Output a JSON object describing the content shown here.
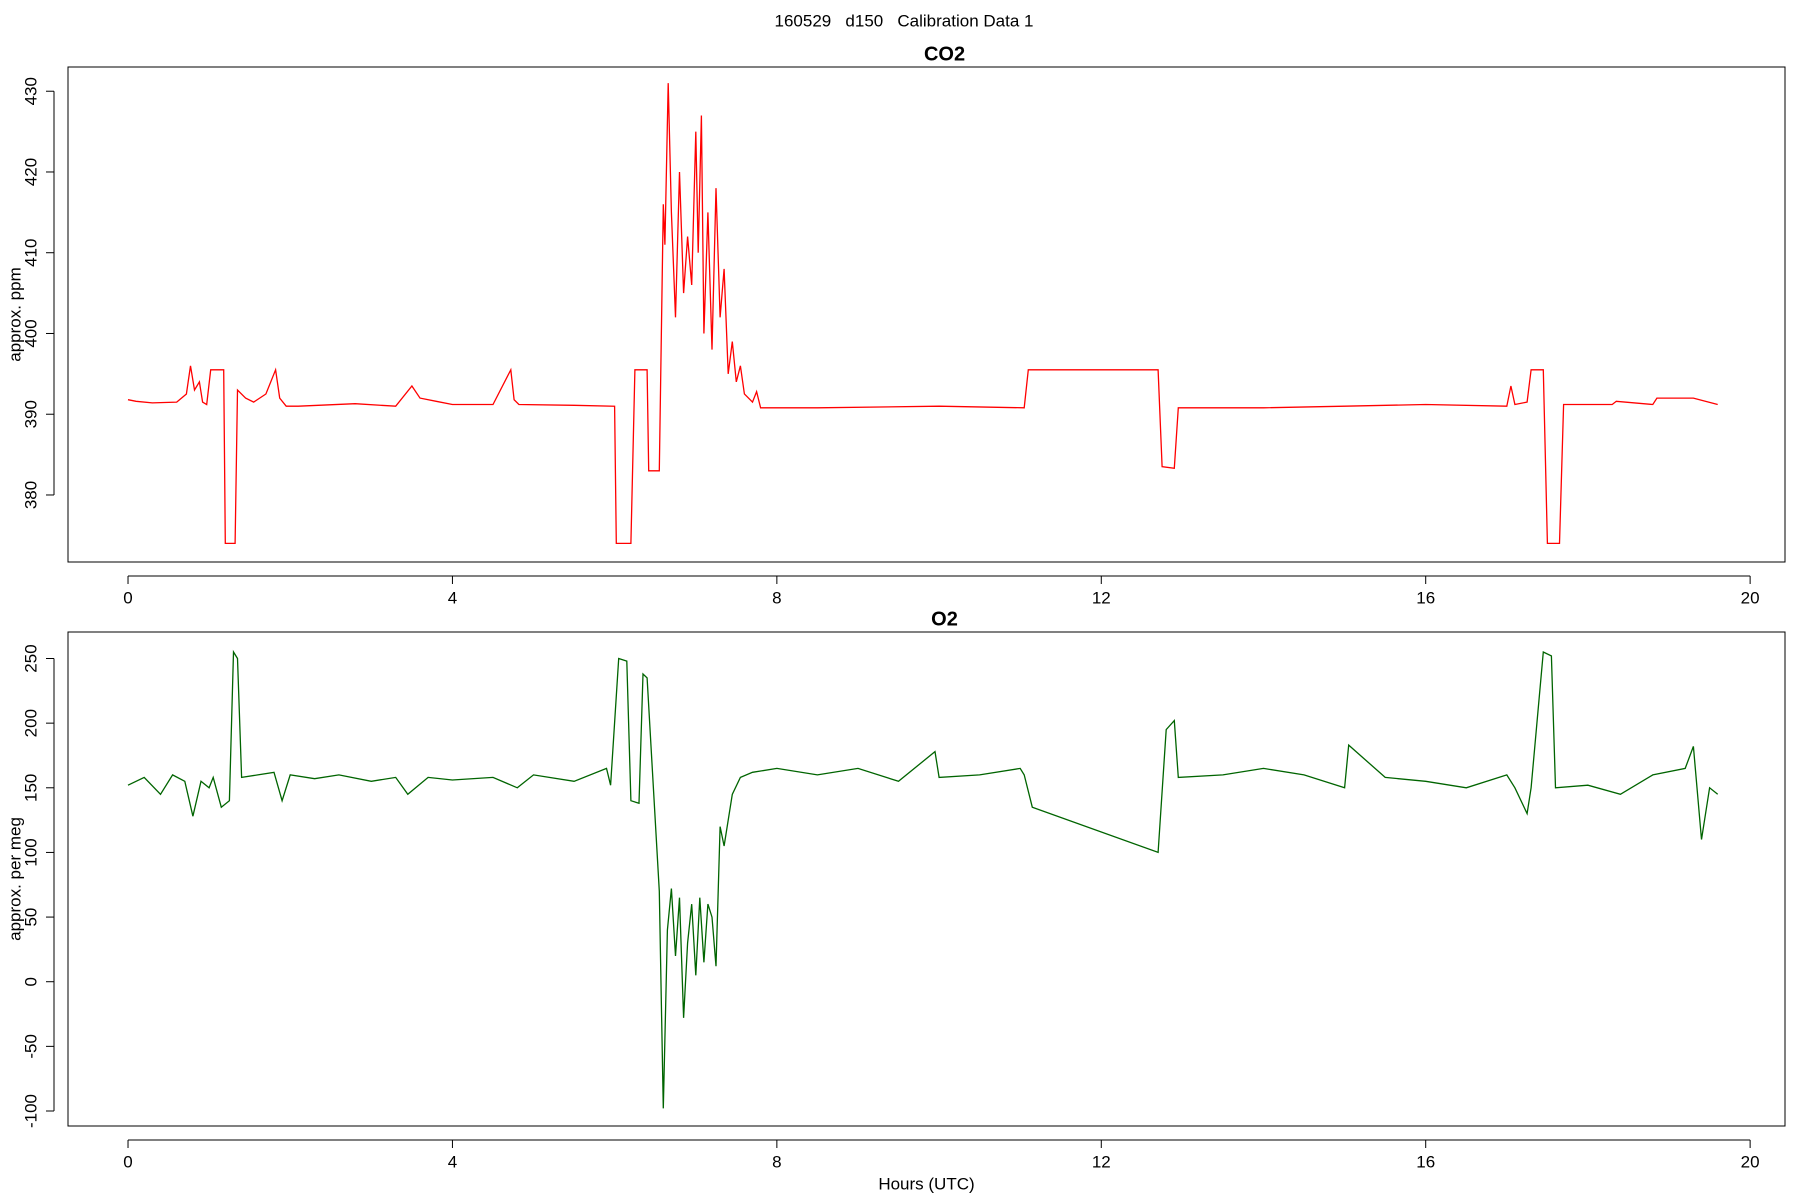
{
  "title": "160529   d150   Calibration Data 1",
  "chart_data": [
    {
      "type": "line",
      "title": "CO2",
      "ylabel": "approx. ppm",
      "xlim": [
        -0.74,
        20.43
      ],
      "xticks": [
        0,
        4,
        8,
        12,
        16,
        20
      ],
      "ylim": [
        371.7,
        433
      ],
      "yticks": [
        380,
        390,
        400,
        410,
        420,
        430
      ],
      "series": [
        {
          "color": "#ff0000",
          "x": [
            0,
            0.1,
            0.3,
            0.6,
            0.72,
            0.77,
            0.82,
            0.88,
            0.92,
            0.97,
            1.02,
            1.18,
            1.2,
            1.32,
            1.35,
            1.45,
            1.55,
            1.7,
            1.82,
            1.87,
            1.95,
            2.1,
            2.8,
            3.3,
            3.5,
            3.6,
            3.8,
            4.0,
            4.5,
            4.72,
            4.76,
            4.82,
            5.5,
            6.0,
            6.02,
            6.2,
            6.25,
            6.4,
            6.42,
            6.55,
            6.6,
            6.62,
            6.66,
            6.7,
            6.75,
            6.8,
            6.85,
            6.9,
            6.95,
            7.0,
            7.03,
            7.07,
            7.1,
            7.15,
            7.2,
            7.25,
            7.3,
            7.35,
            7.4,
            7.45,
            7.5,
            7.55,
            7.6,
            7.7,
            7.75,
            7.8,
            8.5,
            10,
            11.05,
            11.1,
            12.7,
            12.75,
            12.9,
            12.95,
            14,
            15,
            16,
            17,
            17.05,
            17.1,
            17.25,
            17.3,
            17.45,
            17.5,
            17.65,
            17.7,
            18.3,
            18.35,
            18.8,
            18.85,
            19.3,
            19.6
          ],
          "values": [
            391.8,
            391.6,
            391.4,
            391.5,
            392.5,
            396,
            393,
            394,
            391.5,
            391.2,
            395.5,
            395.5,
            374,
            374,
            393,
            392,
            391.5,
            392.5,
            395.5,
            392,
            391,
            391,
            391.3,
            391,
            393.5,
            392,
            391.6,
            391.2,
            391.2,
            395.5,
            391.8,
            391.2,
            391.1,
            391,
            374,
            374,
            395.5,
            395.5,
            383,
            383,
            416,
            411,
            431,
            415,
            402,
            420,
            405,
            412,
            406,
            425,
            410,
            427,
            400,
            415,
            398,
            418,
            402,
            408,
            395,
            399,
            394,
            396,
            392.5,
            391.5,
            392.8,
            390.8,
            390.8,
            391,
            390.8,
            395.5,
            395.5,
            383.5,
            383.3,
            390.8,
            390.8,
            391,
            391.2,
            391,
            393.5,
            391.2,
            391.5,
            395.5,
            395.5,
            374,
            374,
            391.2,
            391.2,
            391.6,
            391.2,
            392,
            392,
            391.2
          ]
        }
      ]
    },
    {
      "type": "line",
      "title": "O2",
      "ylabel": "approx. per meg",
      "xlabel": "Hours (UTC)",
      "xlim": [
        -0.74,
        20.43
      ],
      "xticks": [
        0,
        4,
        8,
        12,
        16,
        20
      ],
      "ylim": [
        -111.6,
        270.5
      ],
      "yticks": [
        -100,
        -50,
        0,
        50,
        100,
        150,
        200,
        250
      ],
      "series": [
        {
          "color": "#006400",
          "x": [
            0,
            0.2,
            0.4,
            0.55,
            0.7,
            0.8,
            0.9,
            1.0,
            1.05,
            1.15,
            1.25,
            1.3,
            1.35,
            1.4,
            1.6,
            1.8,
            1.9,
            2.0,
            2.3,
            2.6,
            3.0,
            3.3,
            3.45,
            3.7,
            4.0,
            4.5,
            4.8,
            5.0,
            5.5,
            5.9,
            5.95,
            6.05,
            6.15,
            6.2,
            6.3,
            6.35,
            6.4,
            6.55,
            6.6,
            6.65,
            6.7,
            6.75,
            6.8,
            6.85,
            6.9,
            6.95,
            7.0,
            7.05,
            7.1,
            7.15,
            7.2,
            7.25,
            7.3,
            7.35,
            7.45,
            7.55,
            7.7,
            8.0,
            8.5,
            9.0,
            9.5,
            9.95,
            10.0,
            10.5,
            11.0,
            11.05,
            11.15,
            12.7,
            12.8,
            12.9,
            12.95,
            13.5,
            14.0,
            14.5,
            15.0,
            15.05,
            15.5,
            16.0,
            16.5,
            17.0,
            17.1,
            17.25,
            17.3,
            17.45,
            17.55,
            17.6,
            18.0,
            18.4,
            18.8,
            19.2,
            19.3,
            19.4,
            19.5,
            19.6
          ],
          "values": [
            152,
            158,
            145,
            160,
            155,
            128,
            155,
            150,
            158,
            135,
            140,
            255,
            250,
            158,
            160,
            162,
            140,
            160,
            157,
            160,
            155,
            158,
            145,
            158,
            156,
            158,
            150,
            160,
            155,
            165,
            152,
            250,
            248,
            140,
            138,
            238,
            235,
            70,
            -98,
            40,
            72,
            20,
            65,
            -28,
            30,
            60,
            5,
            65,
            15,
            60,
            50,
            12,
            120,
            105,
            145,
            158,
            162,
            165,
            160,
            165,
            155,
            178,
            158,
            160,
            165,
            160,
            135,
            100,
            195,
            202,
            158,
            160,
            165,
            160,
            150,
            183,
            158,
            155,
            150,
            160,
            150,
            130,
            150,
            255,
            252,
            150,
            152,
            145,
            160,
            165,
            182,
            110,
            150,
            145
          ]
        }
      ]
    }
  ]
}
